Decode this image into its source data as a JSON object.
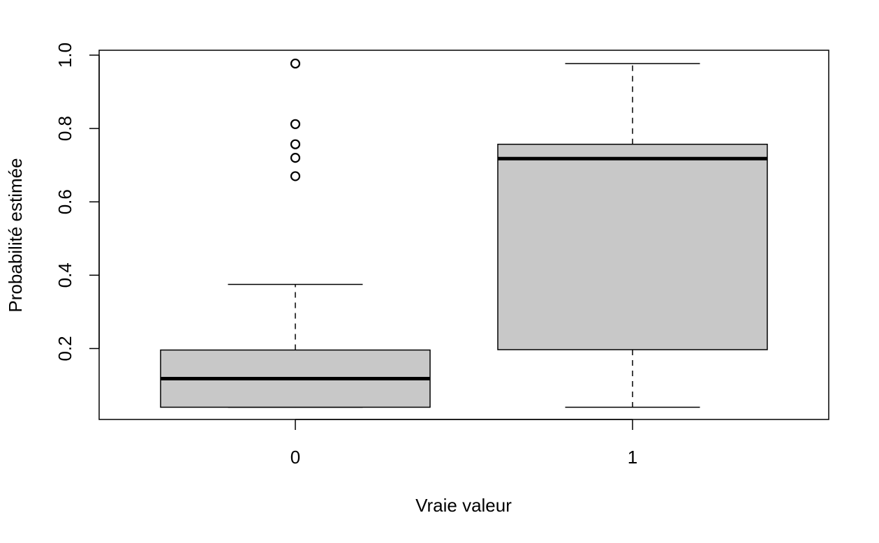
{
  "chart_data": {
    "type": "boxplot",
    "title": "",
    "xlabel": "Vraie valeur",
    "ylabel": "Probabilité estimée",
    "categories": [
      "0",
      "1"
    ],
    "ylim": [
      0.0,
      1.0
    ],
    "yticks": [
      "0.2",
      "0.4",
      "0.6",
      "0.8",
      "1.0"
    ],
    "ytick_values": [
      0.2,
      0.4,
      0.6,
      0.8,
      1.0
    ],
    "boxes": [
      {
        "category": "0",
        "whisker_low": 0.04,
        "q1": 0.04,
        "median": 0.118,
        "q3": 0.196,
        "whisker_high": 0.375,
        "outliers": [
          0.67,
          0.72,
          0.757,
          0.812,
          0.977
        ]
      },
      {
        "category": "1",
        "whisker_low": 0.04,
        "q1": 0.197,
        "median": 0.718,
        "q3": 0.757,
        "whisker_high": 0.977,
        "outliers": []
      }
    ],
    "box_fill": "#c8c8c8",
    "line_color": "#000000",
    "grid": false,
    "legend": "none"
  }
}
